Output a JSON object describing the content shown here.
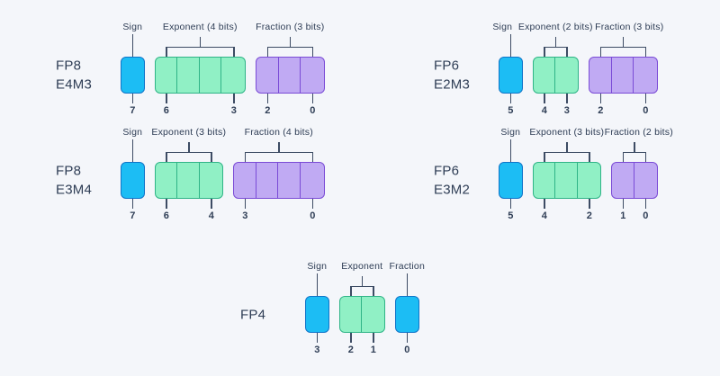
{
  "colors": {
    "background": "#f4f6fa",
    "text": "#2e3d55",
    "connector_line": "#3d4c64",
    "sign_fill": "#1cbdf4",
    "sign_border": "#0f74c8",
    "exponent_fill": "#90f0c5",
    "exponent_border": "#2fb487",
    "fraction_fill": "#c0aaf3",
    "fraction_border": "#7a4bd6"
  },
  "formats": [
    {
      "id": "fp8-e4m3",
      "name_lines": [
        "FP8",
        "E4M3"
      ],
      "groups": [
        {
          "kind": "sign",
          "label": "Sign",
          "cells": 1,
          "color": "sign",
          "bits": [
            "7"
          ]
        },
        {
          "kind": "exponent",
          "label": "Exponent (4 bits)",
          "cells": 4,
          "color": "exponent",
          "bits": [
            "6",
            "3"
          ]
        },
        {
          "kind": "fraction",
          "label": "Fraction (3 bits)",
          "cells": 3,
          "color": "fraction",
          "bits": [
            "2",
            "0"
          ]
        }
      ]
    },
    {
      "id": "fp8-e3m4",
      "name_lines": [
        "FP8",
        "E3M4"
      ],
      "groups": [
        {
          "kind": "sign",
          "label": "Sign",
          "cells": 1,
          "color": "sign",
          "bits": [
            "7"
          ]
        },
        {
          "kind": "exponent",
          "label": "Exponent (3 bits)",
          "cells": 3,
          "color": "exponent",
          "bits": [
            "6",
            "4"
          ]
        },
        {
          "kind": "fraction",
          "label": "Fraction (4 bits)",
          "cells": 4,
          "color": "fraction",
          "bits": [
            "3",
            "0"
          ]
        }
      ]
    },
    {
      "id": "fp6-e2m3",
      "name_lines": [
        "FP6",
        "E2M3"
      ],
      "groups": [
        {
          "kind": "sign",
          "label": "Sign",
          "cells": 1,
          "color": "sign",
          "bits": [
            "5"
          ]
        },
        {
          "kind": "exponent",
          "label": "Exponent (2 bits)",
          "cells": 2,
          "color": "exponent",
          "bits": [
            "4",
            "3"
          ]
        },
        {
          "kind": "fraction",
          "label": "Fraction (3 bits)",
          "cells": 3,
          "color": "fraction",
          "bits": [
            "2",
            "0"
          ]
        }
      ]
    },
    {
      "id": "fp6-e3m2",
      "name_lines": [
        "FP6",
        "E3M2"
      ],
      "groups": [
        {
          "kind": "sign",
          "label": "Sign",
          "cells": 1,
          "color": "sign",
          "bits": [
            "5"
          ]
        },
        {
          "kind": "exponent",
          "label": "Exponent (3 bits)",
          "cells": 3,
          "color": "exponent",
          "bits": [
            "4",
            "2"
          ]
        },
        {
          "kind": "fraction",
          "label": "Fraction (2 bits)",
          "cells": 2,
          "color": "fraction",
          "bits": [
            "1",
            "0"
          ]
        }
      ]
    },
    {
      "id": "fp4",
      "name_lines": [
        "FP4"
      ],
      "groups": [
        {
          "kind": "sign",
          "label": "Sign",
          "cells": 1,
          "color": "sign",
          "bits": [
            "3"
          ]
        },
        {
          "kind": "exponent",
          "label": "Exponent",
          "cells": 2,
          "color": "exponent",
          "bits": [
            "2",
            "1"
          ]
        },
        {
          "kind": "fraction",
          "label": "Fraction",
          "cells": 1,
          "color": "sign",
          "bits": [
            "0"
          ]
        }
      ]
    }
  ]
}
